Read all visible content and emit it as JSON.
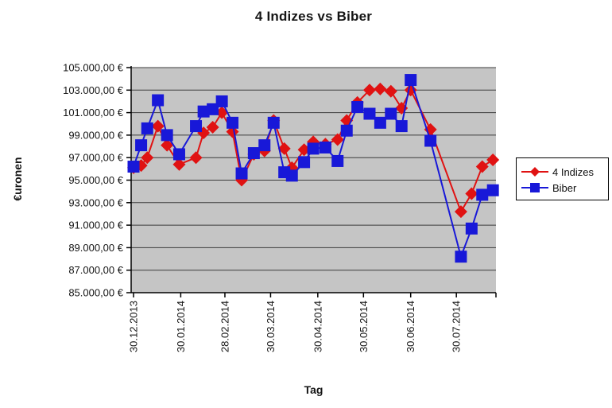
{
  "chart_data": {
    "type": "line",
    "title": "4 Indizes vs Biber",
    "xlabel": "Tag",
    "ylabel": "€uronen",
    "plot_bg": "#c5c5c5",
    "grid": true,
    "grid_color": "#3c3c3c",
    "axis_color": "#000000",
    "legend_position": "right",
    "y_axis": {
      "min": 85000,
      "max": 105000,
      "step": 2000,
      "tick_labels": [
        "105.000,00 €",
        "103.000,00 €",
        "101.000,00 €",
        "99.000,00 €",
        "97.000,00 €",
        "95.000,00 €",
        "93.000,00 €",
        "91.000,00 €",
        "89.000,00 €",
        "87.000,00 €",
        "85.000,00 €"
      ]
    },
    "x_axis": {
      "max_day": 238,
      "ticks": [
        {
          "day": 0,
          "label": "30.12.2013"
        },
        {
          "day": 31,
          "label": "30.01.2014"
        },
        {
          "day": 60,
          "label": "28.02.2014"
        },
        {
          "day": 90,
          "label": "30.03.2014"
        },
        {
          "day": 121,
          "label": "30.04.2014"
        },
        {
          "day": 151,
          "label": "30.05.2014"
        },
        {
          "day": 182,
          "label": "30.06.2014"
        },
        {
          "day": 212,
          "label": "30.07.2014"
        }
      ]
    },
    "x_days": [
      0,
      5,
      9,
      16,
      22,
      30,
      41,
      46,
      52,
      58,
      65,
      71,
      79,
      86,
      92,
      99,
      104,
      112,
      118,
      126,
      134,
      140,
      147,
      155,
      162,
      169,
      176,
      182,
      195,
      215,
      222,
      229,
      236
    ],
    "series": [
      {
        "name": "4 Indizes",
        "color": "#e01212",
        "marker": "diamond",
        "values": [
          96100,
          96300,
          97000,
          99800,
          98100,
          96400,
          97000,
          99200,
          99700,
          101000,
          99300,
          95000,
          97300,
          97600,
          100300,
          97800,
          96100,
          97700,
          98400,
          98200,
          98600,
          100300,
          101900,
          103000,
          103100,
          102900,
          101400,
          103000,
          99500,
          92200,
          93800,
          96200,
          96800
        ]
      },
      {
        "name": "Biber",
        "color": "#1818d8",
        "marker": "square",
        "values": [
          96200,
          98100,
          99600,
          102100,
          99000,
          97300,
          99800,
          101100,
          101300,
          102000,
          100100,
          95600,
          97400,
          98100,
          100100,
          95700,
          95400,
          96600,
          97800,
          97900,
          96700,
          99400,
          101500,
          100900,
          100100,
          100900,
          99800,
          103900,
          98500,
          88200,
          90700,
          93700,
          94100
        ]
      }
    ]
  }
}
